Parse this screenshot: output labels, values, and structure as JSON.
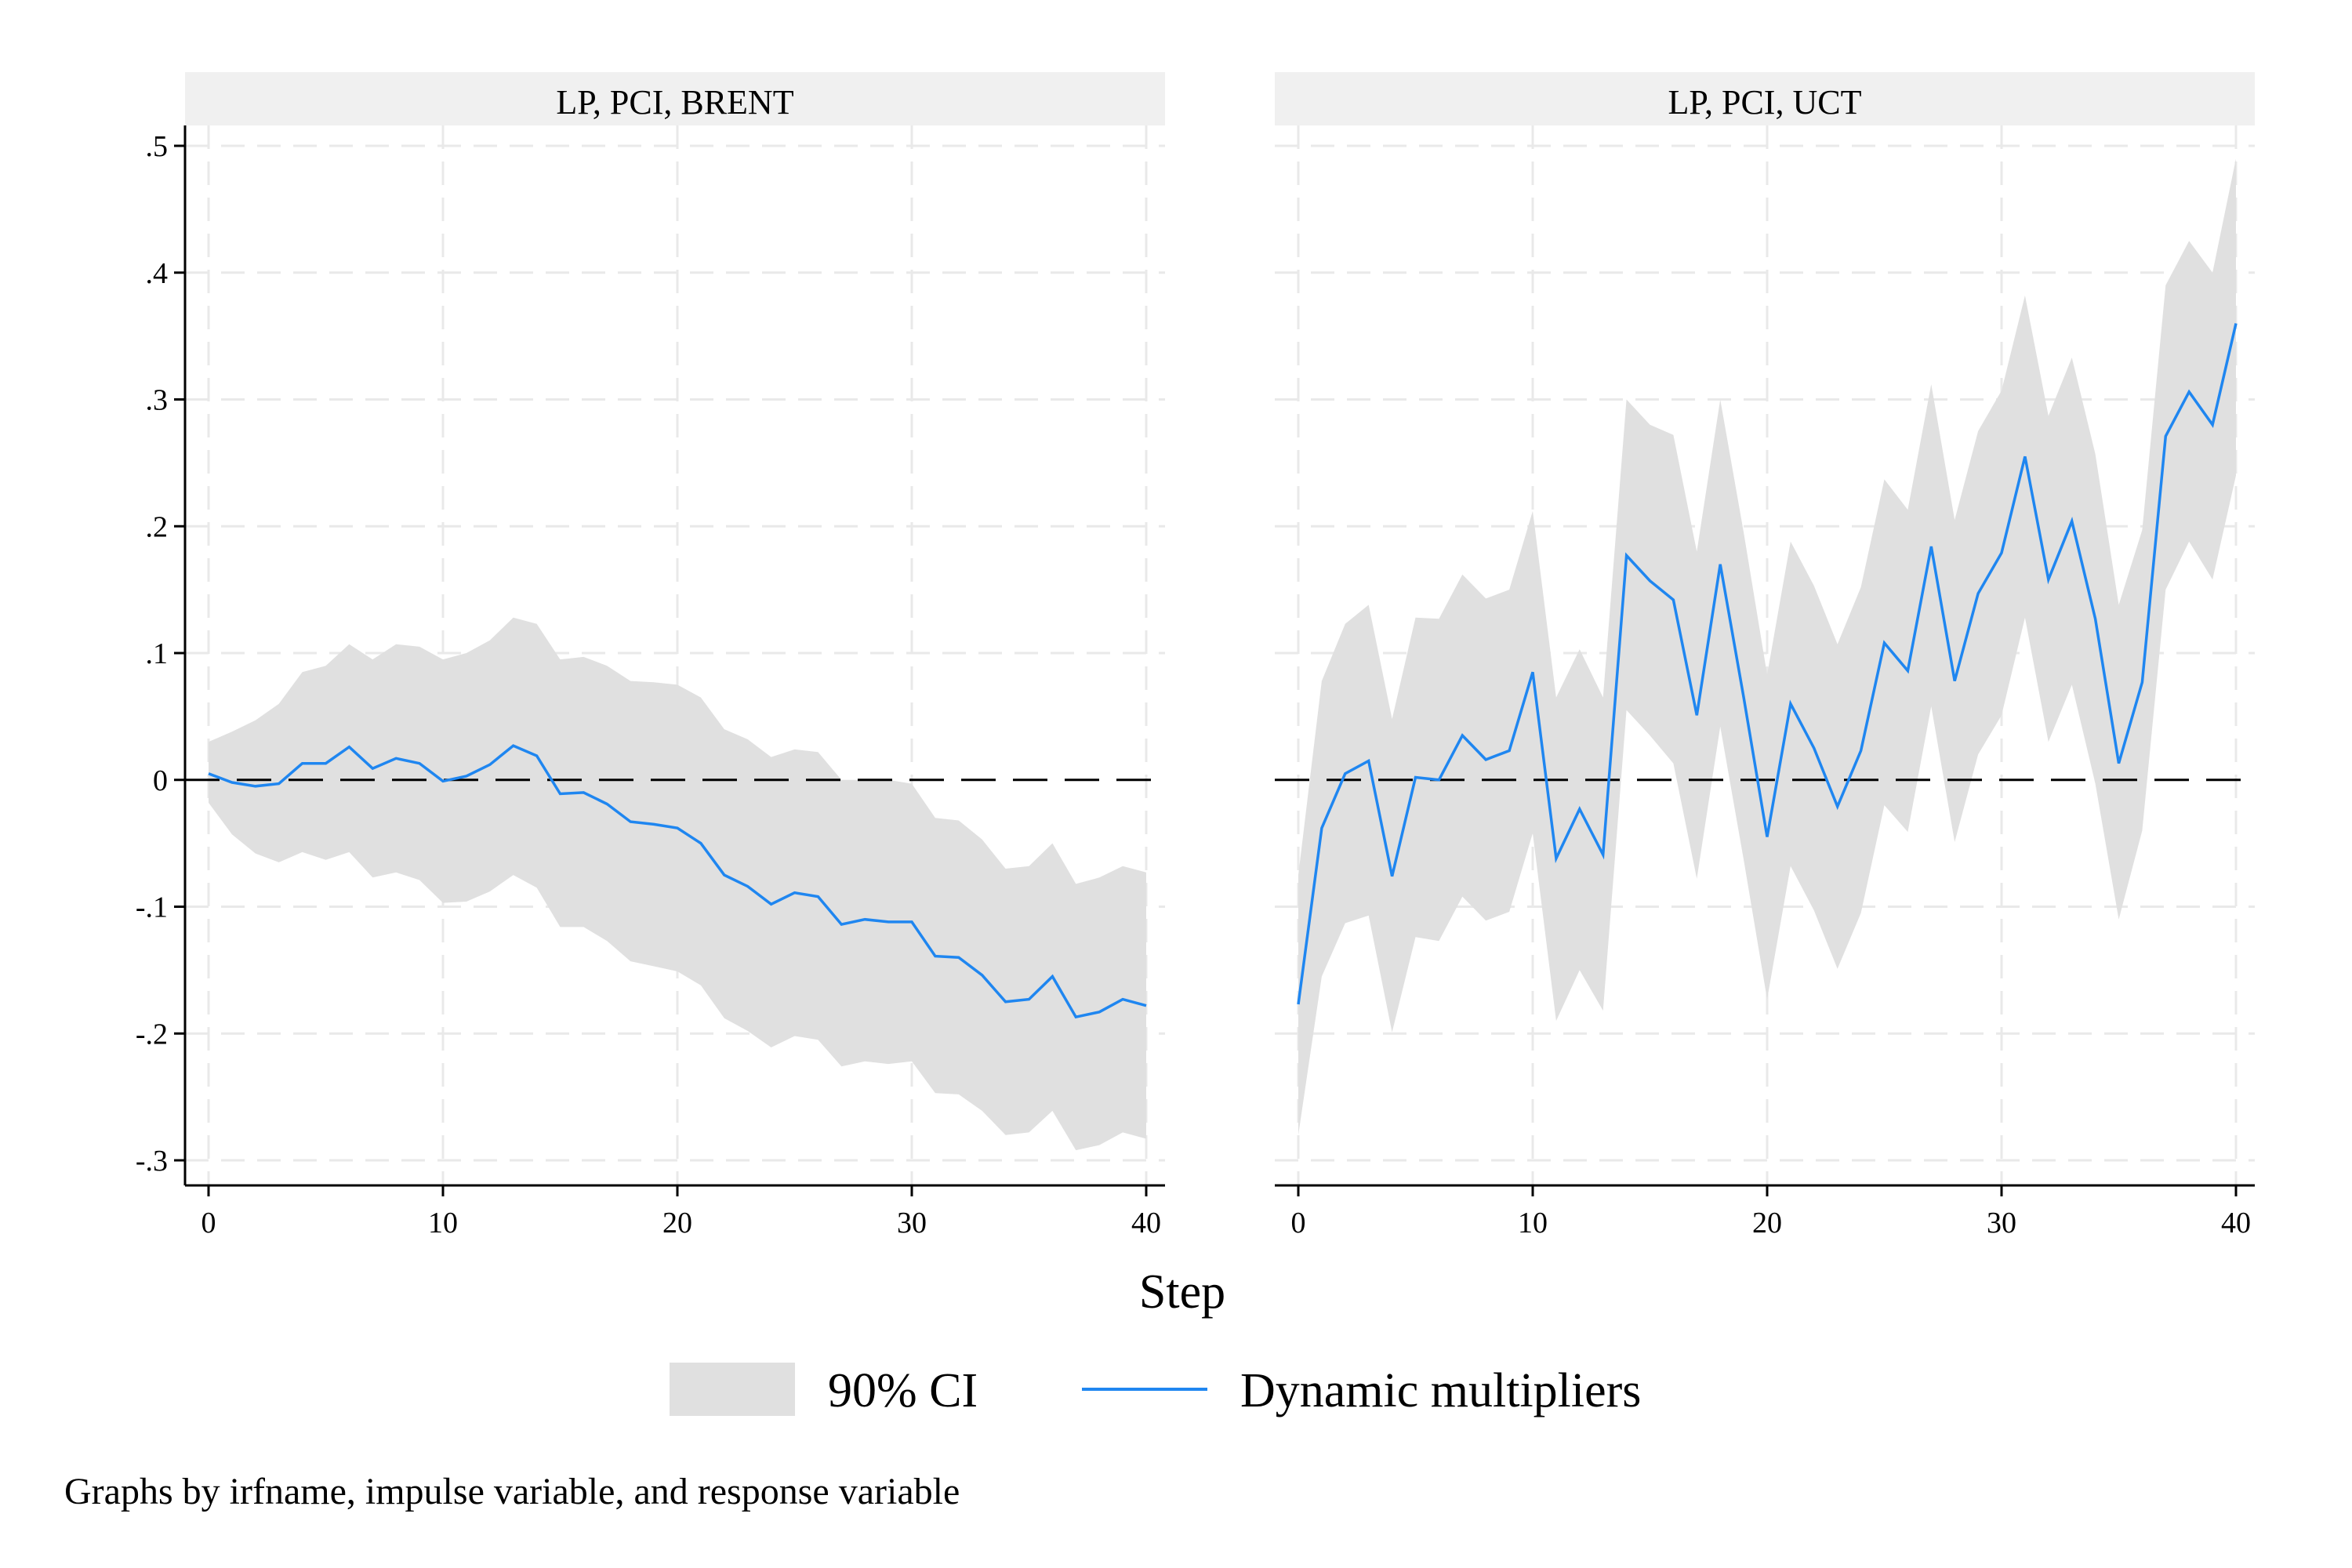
{
  "chart_data": {
    "type": "line",
    "x_label": "Step",
    "legend": {
      "position": "bottom",
      "items": [
        {
          "label": "90% CI",
          "kind": "band"
        },
        {
          "label": "Dynamic multipliers",
          "kind": "line"
        }
      ]
    },
    "note": "Graphs by irfname, impulse variable, and response variable",
    "colors": {
      "band": "#e0e0e0",
      "line": "#1f86f0",
      "header": "#f0f0f0",
      "grid": "#e9e9e9",
      "zero_line": "#000000"
    },
    "x_range": [
      0,
      40
    ],
    "y_range": [
      -0.3,
      0.5
    ],
    "x_ticks": [
      0,
      10,
      20,
      30,
      40
    ],
    "y_ticks": [
      {
        "value": 0.5,
        "label": ".5"
      },
      {
        "value": 0.4,
        "label": ".4"
      },
      {
        "value": 0.3,
        "label": ".3"
      },
      {
        "value": 0.2,
        "label": ".2"
      },
      {
        "value": 0.1,
        "label": ".1"
      },
      {
        "value": 0.0,
        "label": "0"
      },
      {
        "value": -0.1,
        "label": "-.1"
      },
      {
        "value": -0.2,
        "label": "-.2"
      },
      {
        "value": -0.3,
        "label": "-.3"
      }
    ],
    "grid": true,
    "reference_line": 0,
    "x": [
      0,
      1,
      2,
      3,
      4,
      5,
      6,
      7,
      8,
      9,
      10,
      11,
      12,
      13,
      14,
      15,
      16,
      17,
      18,
      19,
      20,
      21,
      22,
      23,
      24,
      25,
      26,
      27,
      28,
      29,
      30,
      31,
      32,
      33,
      34,
      35,
      36,
      37,
      38,
      39,
      40
    ],
    "panels": [
      {
        "title": "LP, PCI, BRENT",
        "series": {
          "estimate": [
            0.005,
            -0.002,
            -0.005,
            -0.003,
            0.013,
            0.013,
            0.026,
            0.009,
            0.017,
            0.013,
            -0.001,
            0.003,
            0.012,
            0.027,
            0.019,
            -0.011,
            -0.01,
            -0.019,
            -0.033,
            -0.035,
            -0.038,
            -0.05,
            -0.075,
            -0.084,
            -0.098,
            -0.089,
            -0.092,
            -0.114,
            -0.11,
            -0.112,
            -0.112,
            -0.139,
            -0.14,
            -0.154,
            -0.175,
            -0.173,
            -0.155,
            -0.187,
            -0.183,
            -0.173,
            -0.178
          ],
          "upper": [
            0.03,
            0.038,
            0.047,
            0.06,
            0.085,
            0.09,
            0.107,
            0.095,
            0.107,
            0.105,
            0.095,
            0.1,
            0.11,
            0.128,
            0.123,
            0.095,
            0.097,
            0.09,
            0.078,
            0.077,
            0.075,
            0.065,
            0.04,
            0.032,
            0.018,
            0.024,
            0.022,
            0.0,
            0.0,
            0.0,
            -0.003,
            -0.03,
            -0.032,
            -0.047,
            -0.07,
            -0.068,
            -0.05,
            -0.082,
            -0.077,
            -0.068,
            -0.073
          ],
          "lower": [
            -0.018,
            -0.043,
            -0.058,
            -0.065,
            -0.057,
            -0.063,
            -0.057,
            -0.077,
            -0.073,
            -0.079,
            -0.097,
            -0.096,
            -0.088,
            -0.075,
            -0.085,
            -0.116,
            -0.116,
            -0.127,
            -0.143,
            -0.147,
            -0.151,
            -0.162,
            -0.188,
            -0.198,
            -0.211,
            -0.202,
            -0.205,
            -0.226,
            -0.222,
            -0.224,
            -0.222,
            -0.247,
            -0.248,
            -0.261,
            -0.28,
            -0.278,
            -0.261,
            -0.292,
            -0.288,
            -0.278,
            -0.283
          ]
        }
      },
      {
        "title": "LP, PCI, UCT",
        "series": {
          "estimate": [
            -0.177,
            -0.038,
            0.005,
            0.015,
            -0.076,
            0.002,
            0.0,
            0.035,
            0.016,
            0.023,
            0.085,
            -0.062,
            -0.023,
            -0.059,
            0.177,
            0.157,
            0.142,
            0.051,
            0.17,
            0.065,
            -0.045,
            0.06,
            0.025,
            -0.021,
            0.023,
            0.108,
            0.086,
            0.184,
            0.078,
            0.147,
            0.179,
            0.255,
            0.158,
            0.204,
            0.127,
            0.013,
            0.077,
            0.271,
            0.306,
            0.28,
            0.36
          ],
          "upper": [
            -0.075,
            0.078,
            0.123,
            0.138,
            0.048,
            0.128,
            0.127,
            0.162,
            0.143,
            0.15,
            0.212,
            0.065,
            0.103,
            0.065,
            0.3,
            0.28,
            0.272,
            0.18,
            0.3,
            0.195,
            0.083,
            0.188,
            0.153,
            0.107,
            0.152,
            0.237,
            0.213,
            0.312,
            0.205,
            0.275,
            0.307,
            0.382,
            0.287,
            0.333,
            0.257,
            0.138,
            0.197,
            0.39,
            0.425,
            0.4,
            0.49
          ],
          "lower": [
            -0.28,
            -0.155,
            -0.113,
            -0.107,
            -0.199,
            -0.124,
            -0.127,
            -0.092,
            -0.111,
            -0.104,
            -0.042,
            -0.19,
            -0.15,
            -0.182,
            0.055,
            0.035,
            0.013,
            -0.078,
            0.042,
            -0.063,
            -0.173,
            -0.068,
            -0.103,
            -0.149,
            -0.105,
            -0.02,
            -0.041,
            0.058,
            -0.049,
            0.02,
            0.051,
            0.128,
            0.03,
            0.075,
            -0.003,
            -0.11,
            -0.04,
            0.15,
            0.188,
            0.158,
            0.24
          ]
        }
      }
    ]
  }
}
